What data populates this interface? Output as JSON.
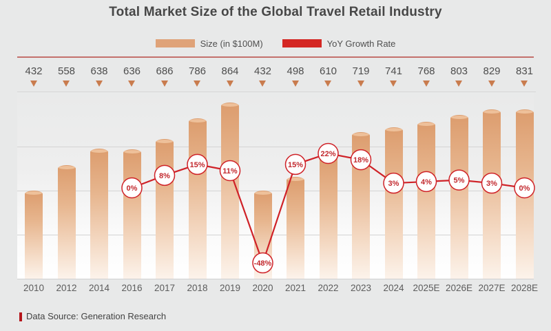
{
  "title": "Total Market Size of the Global Travel Retail Industry",
  "legend": {
    "bar_label": "Size (in $100M)",
    "line_label": "YoY Growth Rate"
  },
  "footer": {
    "text": "Data Source: Generation Research"
  },
  "colors": {
    "bar_top": "#dc9c6d",
    "bar_bottom": "#fcf3eb",
    "bar_legend_swatch": "#dfa379",
    "line": "#cf2127",
    "bubble_fill": "#ffffff",
    "bubble_text": "#c2282d",
    "marker_triangle": "#c97c4e",
    "top_divider": "#c4706c",
    "source_marker": "#b5161c",
    "background": "#e8e9e9"
  },
  "chart_data": {
    "type": "bar",
    "title": "Total Market Size of the Global Travel Retail Industry",
    "categories": [
      "2010",
      "2012",
      "2014",
      "2016",
      "2017",
      "2018",
      "2019",
      "2020",
      "2021",
      "2022",
      "2023",
      "2024",
      "2025E",
      "2026E",
      "2027E",
      "2028E"
    ],
    "series": [
      {
        "name": "Size (in $100M)",
        "type": "bar",
        "values": [
          432,
          558,
          638,
          636,
          686,
          786,
          864,
          432,
          498,
          610,
          719,
          741,
          768,
          803,
          829,
          831
        ]
      },
      {
        "name": "YoY Growth Rate",
        "type": "line",
        "unit": "%",
        "values": [
          null,
          null,
          null,
          0,
          8,
          15,
          11,
          -48,
          15,
          22,
          18,
          3,
          4,
          5,
          3,
          0
        ]
      }
    ],
    "value_labels_position": "above-plot",
    "xlabel": "",
    "ylabel": "",
    "ylim": [
      0,
      918
    ],
    "grid": true,
    "legend_position": "top"
  }
}
